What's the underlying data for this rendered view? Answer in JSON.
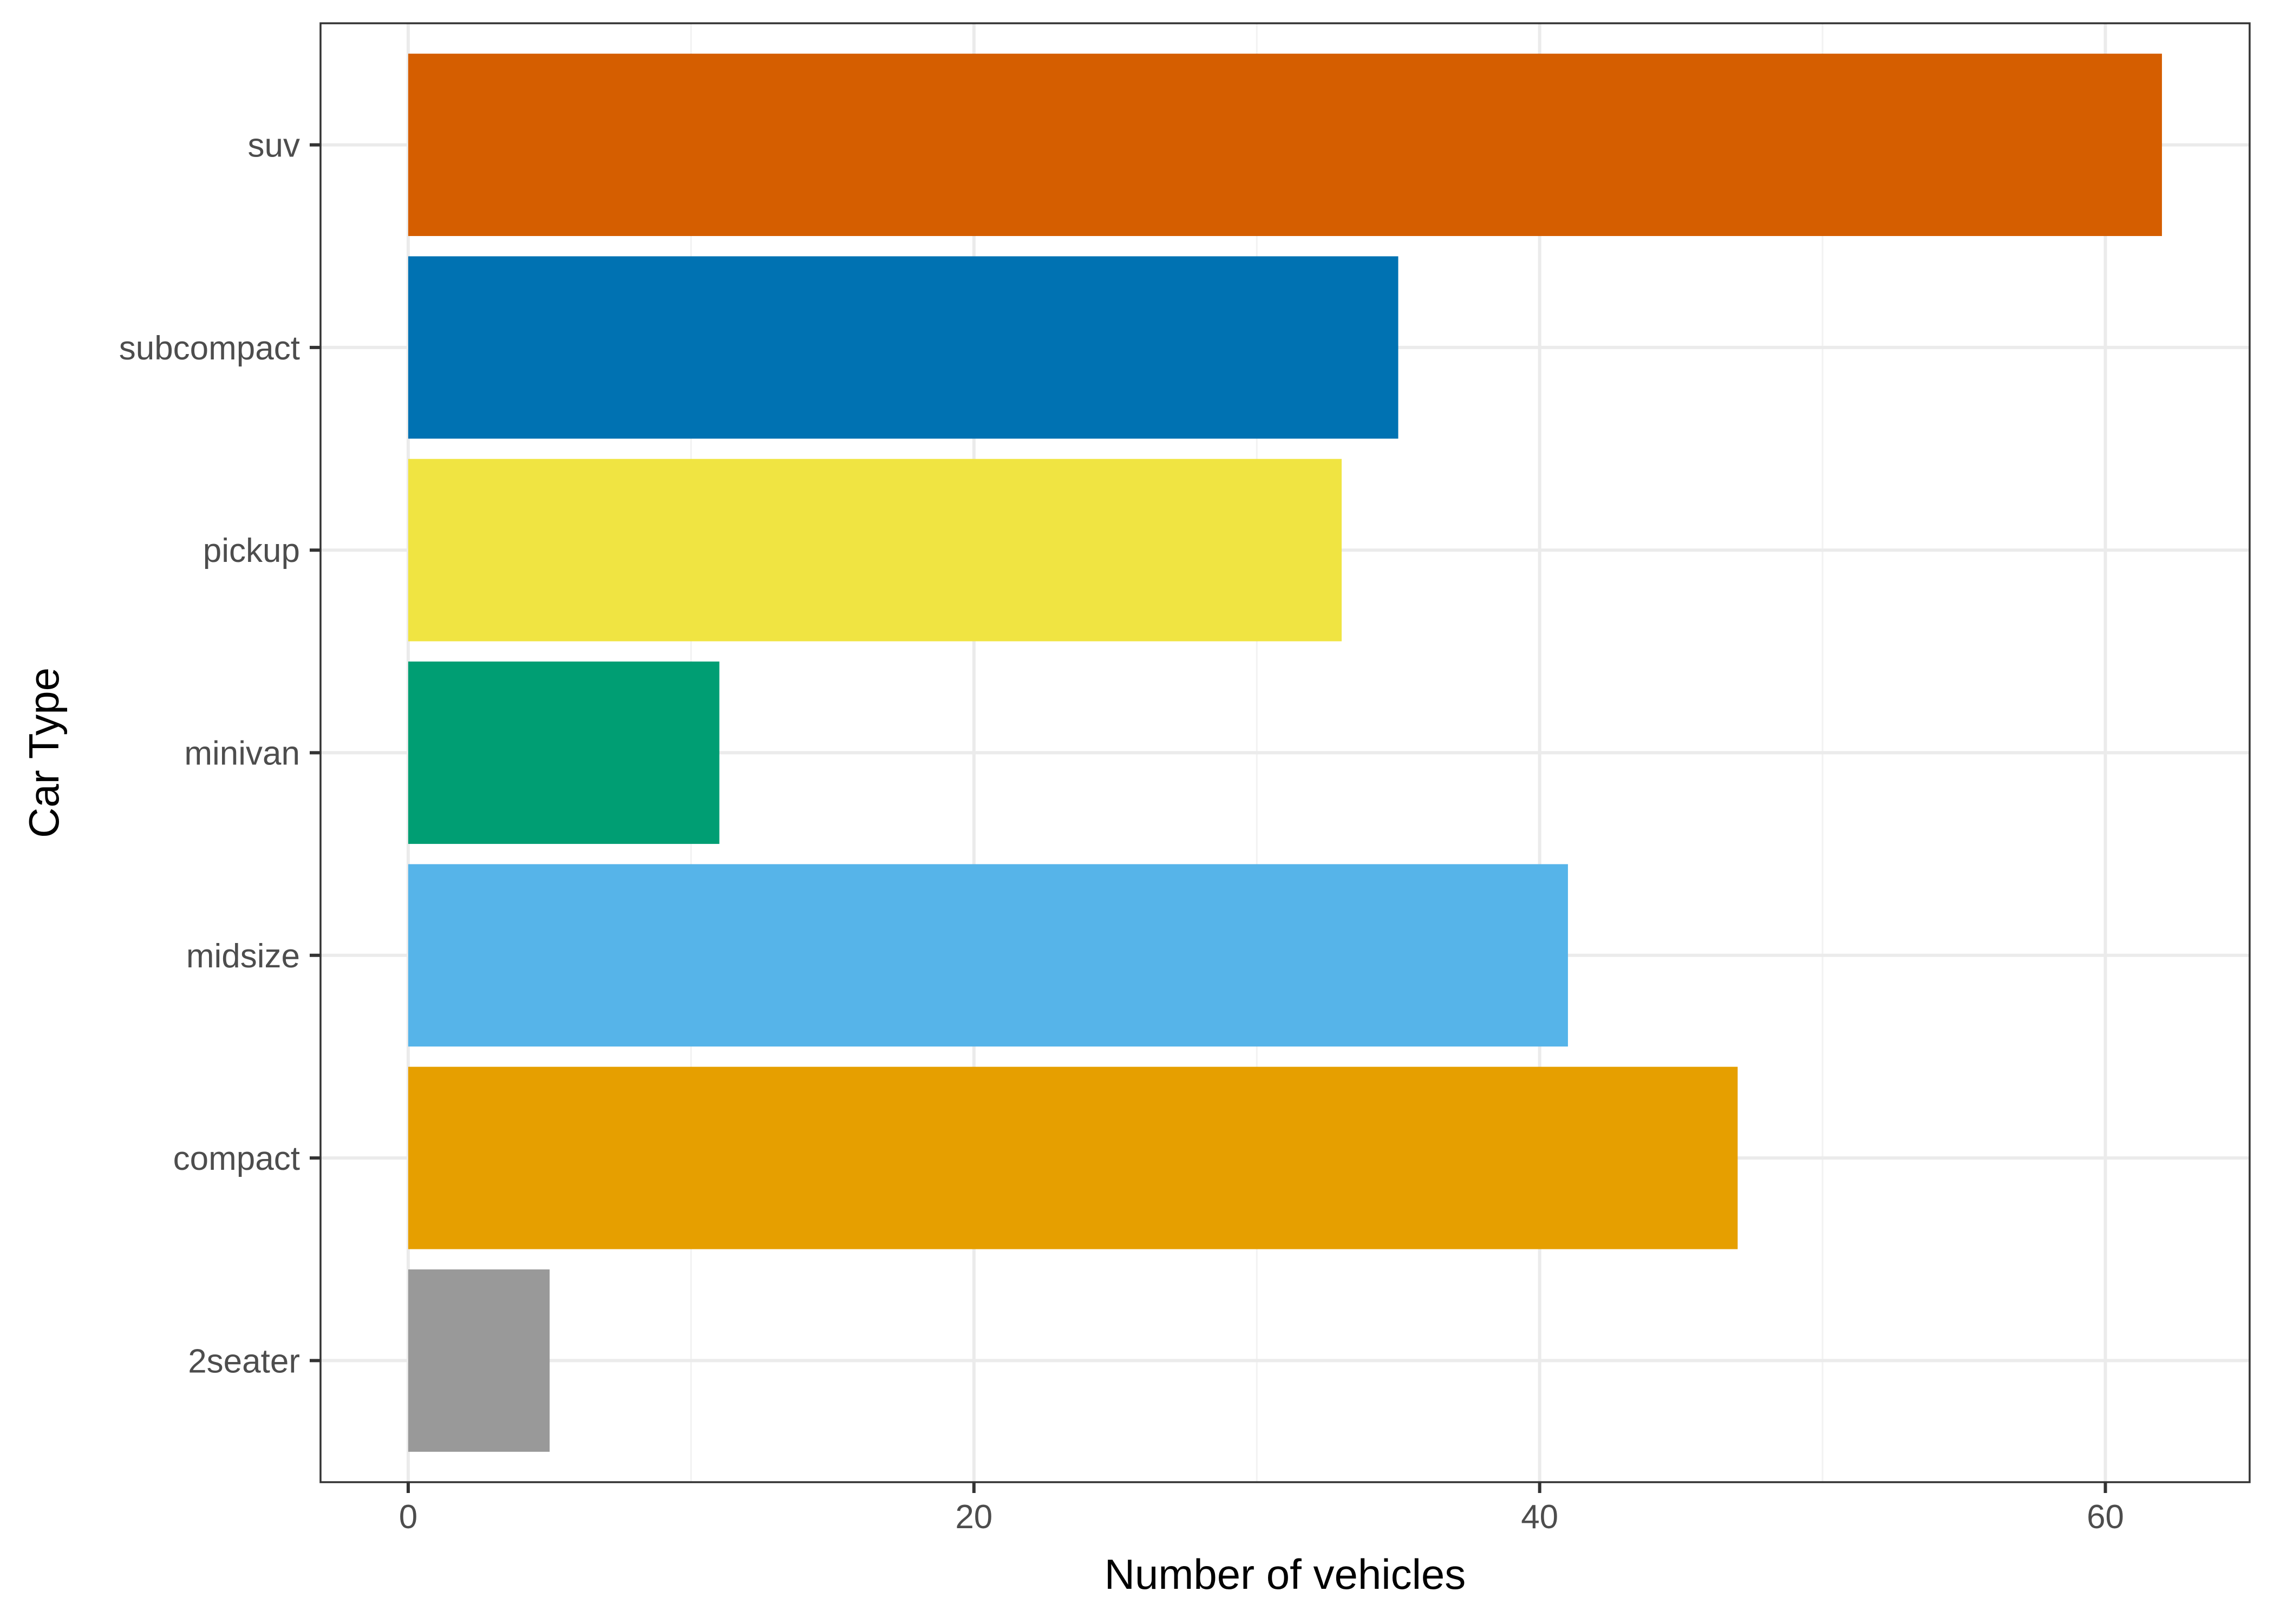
{
  "chart_data": {
    "type": "bar",
    "orientation": "horizontal",
    "xlabel": "Number of vehicles",
    "ylabel": "Car Type",
    "xlim": [
      -3.1,
      65.1
    ],
    "x_ticks": [
      0,
      20,
      40,
      60
    ],
    "grid": true,
    "legend": "none",
    "categories": [
      "2seater",
      "compact",
      "midsize",
      "minivan",
      "pickup",
      "subcompact",
      "suv"
    ],
    "values": [
      5,
      47,
      41,
      11,
      33,
      35,
      62
    ],
    "colors": [
      "#999999",
      "#E69F00",
      "#56B4E9",
      "#009E73",
      "#F0E442",
      "#0072B2",
      "#D55E00"
    ]
  }
}
